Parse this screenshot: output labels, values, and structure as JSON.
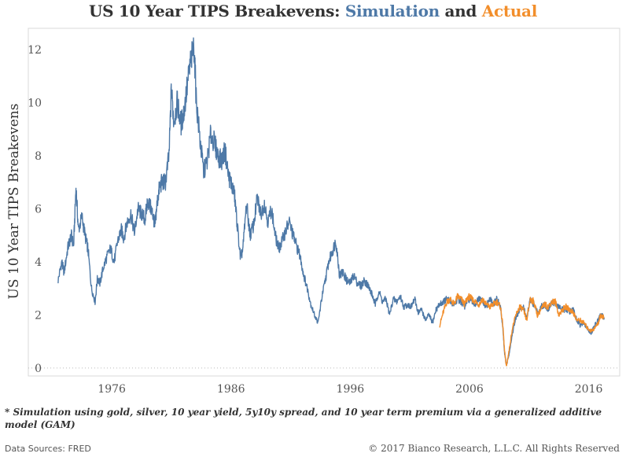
{
  "title": {
    "prefix": "US 10 Year TIPS Breakevens: ",
    "sim_word": "Simulation",
    "mid": " and ",
    "act_word": "Actual"
  },
  "footnote": "* Simulation using gold, silver, 10 year yield, 5y10y spread, and 10 year term premium via a generalized additive model (GAM)",
  "source": "Data Sources: FRED",
  "copyright": "© 2017 Bianco Research, L.L.C. All Rights Reserved",
  "colors": {
    "simulation": "#4e79a7",
    "actual": "#f28e2b"
  },
  "chart_data": {
    "type": "line",
    "title": "US 10 Year TIPS Breakevens: Simulation and Actual",
    "ylabel": "US 10 Year TIPS Breakevens",
    "xlabel": "",
    "xlim": [
      1969.0,
      2018.6
    ],
    "ylim": [
      -0.3,
      12.8
    ],
    "yticks": [
      0,
      2,
      4,
      6,
      8,
      10,
      12
    ],
    "xticks": [
      1976,
      1986,
      1996,
      2006,
      2016
    ],
    "grid": false,
    "zero_line": "dotted",
    "series": [
      {
        "name": "Simulation",
        "color": "#4e79a7",
        "x": [
          1971.5,
          1971.8,
          1972.0,
          1972.3,
          1972.6,
          1972.8,
          1973.0,
          1973.2,
          1973.5,
          1973.8,
          1974.0,
          1974.3,
          1974.6,
          1974.8,
          1975.0,
          1975.3,
          1975.6,
          1975.9,
          1976.2,
          1976.5,
          1976.8,
          1977.0,
          1977.3,
          1977.6,
          1977.9,
          1978.2,
          1978.5,
          1978.8,
          1979.0,
          1979.3,
          1979.5,
          1979.6,
          1979.8,
          1980.0,
          1980.2,
          1980.5,
          1980.8,
          1981.0,
          1981.2,
          1981.5,
          1981.8,
          1982.0,
          1982.3,
          1982.6,
          1982.9,
          1983.1,
          1983.4,
          1983.7,
          1984.0,
          1984.3,
          1984.6,
          1984.9,
          1985.2,
          1985.5,
          1985.8,
          1986.0,
          1986.3,
          1986.5,
          1986.8,
          1987.0,
          1987.3,
          1987.6,
          1987.9,
          1988.2,
          1988.5,
          1988.8,
          1989.1,
          1989.4,
          1989.7,
          1990.0,
          1990.3,
          1990.6,
          1990.9,
          1991.2,
          1991.5,
          1991.8,
          1992.1,
          1992.4,
          1992.7,
          1993.0,
          1993.3,
          1993.6,
          1993.9,
          1994.2,
          1994.5,
          1994.8,
          1995.1,
          1995.4,
          1995.7,
          1996.0,
          1996.3,
          1996.6,
          1996.9,
          1997.2,
          1997.5,
          1997.8,
          1998.1,
          1998.4,
          1998.7,
          1999.0,
          1999.3,
          1999.6,
          1999.9,
          2000.2,
          2000.5,
          2000.8,
          2001.1,
          2001.4,
          2001.7,
          2002.0,
          2002.3,
          2002.6,
          2002.9,
          2003.2,
          2003.5,
          2003.8,
          2004.1,
          2004.4,
          2004.7,
          2005.0,
          2005.3,
          2005.6,
          2005.9,
          2006.2,
          2006.5,
          2006.8,
          2007.1,
          2007.4,
          2007.7,
          2008.0,
          2008.3,
          2008.6,
          2008.8,
          2008.95,
          2009.1,
          2009.3,
          2009.6,
          2009.9,
          2010.2,
          2010.5,
          2010.8,
          2011.1,
          2011.4,
          2011.7,
          2012.0,
          2012.3,
          2012.6,
          2012.9,
          2013.2,
          2013.5,
          2013.8,
          2014.1,
          2014.4,
          2014.7,
          2015.0,
          2015.3,
          2015.6,
          2015.9,
          2016.2,
          2016.5,
          2016.8,
          2017.0,
          2017.3
        ],
        "y": [
          3.3,
          4.0,
          3.6,
          4.5,
          5.0,
          4.6,
          6.8,
          5.2,
          5.7,
          4.9,
          4.5,
          3.0,
          2.5,
          3.4,
          3.2,
          3.8,
          4.2,
          4.5,
          4.0,
          4.8,
          5.2,
          4.9,
          5.5,
          5.8,
          5.1,
          6.0,
          5.8,
          5.6,
          6.3,
          6.0,
          5.7,
          5.3,
          6.2,
          6.8,
          7.0,
          7.0,
          8.0,
          10.5,
          9.3,
          10.0,
          9.2,
          9.5,
          10.5,
          11.5,
          12.1,
          10.0,
          8.6,
          7.4,
          7.8,
          8.8,
          8.5,
          8.0,
          7.8,
          8.2,
          7.2,
          7.0,
          6.5,
          5.5,
          4.1,
          4.5,
          6.2,
          5.0,
          5.4,
          6.4,
          5.8,
          6.2,
          5.5,
          6.0,
          5.0,
          4.5,
          4.8,
          5.2,
          5.5,
          5.0,
          4.6,
          4.2,
          3.5,
          3.0,
          2.4,
          2.0,
          1.7,
          2.6,
          3.3,
          4.0,
          4.4,
          4.8,
          3.5,
          3.6,
          3.3,
          3.2,
          3.5,
          3.2,
          3.1,
          3.3,
          3.1,
          2.8,
          2.4,
          2.9,
          2.5,
          2.6,
          2.0,
          2.6,
          2.5,
          2.7,
          2.3,
          2.4,
          2.3,
          2.6,
          2.1,
          2.2,
          1.8,
          2.0,
          1.7,
          2.2,
          2.4,
          2.5,
          2.6,
          2.5,
          2.4,
          2.6,
          2.5,
          2.3,
          2.6,
          2.5,
          2.4,
          2.6,
          2.5,
          2.3,
          2.6,
          2.4,
          2.6,
          2.3,
          1.5,
          0.5,
          0.1,
          0.5,
          1.3,
          1.9,
          2.2,
          2.3,
          1.9,
          2.6,
          2.4,
          2.1,
          2.3,
          2.4,
          2.2,
          2.5,
          2.4,
          2.3,
          2.2,
          2.2,
          2.1,
          2.2,
          1.8,
          1.6,
          1.7,
          1.5,
          1.3,
          1.6,
          1.8,
          2.0,
          1.9
        ]
      },
      {
        "name": "Actual",
        "color": "#f28e2b",
        "x": [
          2003.5,
          2003.8,
          2004.1,
          2004.4,
          2004.7,
          2005.0,
          2005.3,
          2005.6,
          2005.9,
          2006.2,
          2006.5,
          2006.8,
          2007.1,
          2007.4,
          2007.7,
          2008.0,
          2008.3,
          2008.6,
          2008.8,
          2008.95,
          2009.1,
          2009.3,
          2009.6,
          2009.9,
          2010.2,
          2010.5,
          2010.8,
          2011.1,
          2011.4,
          2011.7,
          2012.0,
          2012.3,
          2012.6,
          2012.9,
          2013.2,
          2013.5,
          2013.8,
          2014.1,
          2014.4,
          2014.7,
          2015.0,
          2015.3,
          2015.6,
          2015.9,
          2016.2,
          2016.5,
          2016.8,
          2017.0,
          2017.3
        ],
        "y": [
          1.6,
          2.1,
          2.5,
          2.6,
          2.4,
          2.7,
          2.6,
          2.4,
          2.7,
          2.6,
          2.5,
          2.4,
          2.6,
          2.4,
          2.3,
          2.4,
          2.5,
          2.3,
          1.6,
          0.6,
          0.05,
          0.6,
          1.5,
          2.0,
          2.3,
          2.2,
          1.8,
          2.6,
          2.5,
          2.0,
          2.2,
          2.4,
          2.3,
          2.5,
          2.5,
          2.0,
          2.2,
          2.3,
          2.2,
          2.1,
          1.8,
          1.8,
          1.7,
          1.5,
          1.4,
          1.5,
          1.7,
          2.0,
          1.9
        ]
      }
    ]
  }
}
